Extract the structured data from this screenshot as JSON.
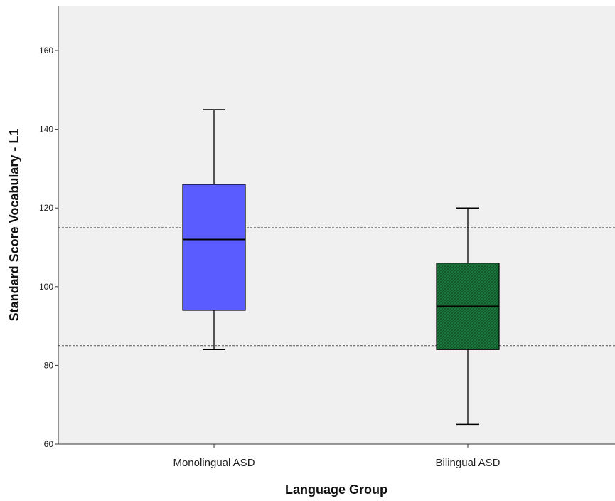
{
  "chart_data": {
    "type": "boxplot",
    "title": "",
    "xlabel": "Language Group",
    "ylabel": "Standard Score Vocabulary - L1",
    "ylim": [
      60,
      170
    ],
    "yticks": [
      60,
      80,
      100,
      120,
      140,
      160
    ],
    "grid": false,
    "reference_lines": [
      85,
      115
    ],
    "categories": [
      "Monolingual ASD",
      "Bilingual ASD"
    ],
    "boxes": [
      {
        "category": "Monolingual ASD",
        "min": 84,
        "q1": 94,
        "median": 112,
        "q3": 126,
        "max": 145,
        "color": "#5b5cff",
        "pattern": "solid"
      },
      {
        "category": "Bilingual ASD",
        "min": 65,
        "q1": 84,
        "median": 95,
        "q3": 106,
        "max": 120,
        "color": "#1e7a3f",
        "pattern": "hatched"
      }
    ],
    "plot_background": "#f0f0f0"
  }
}
